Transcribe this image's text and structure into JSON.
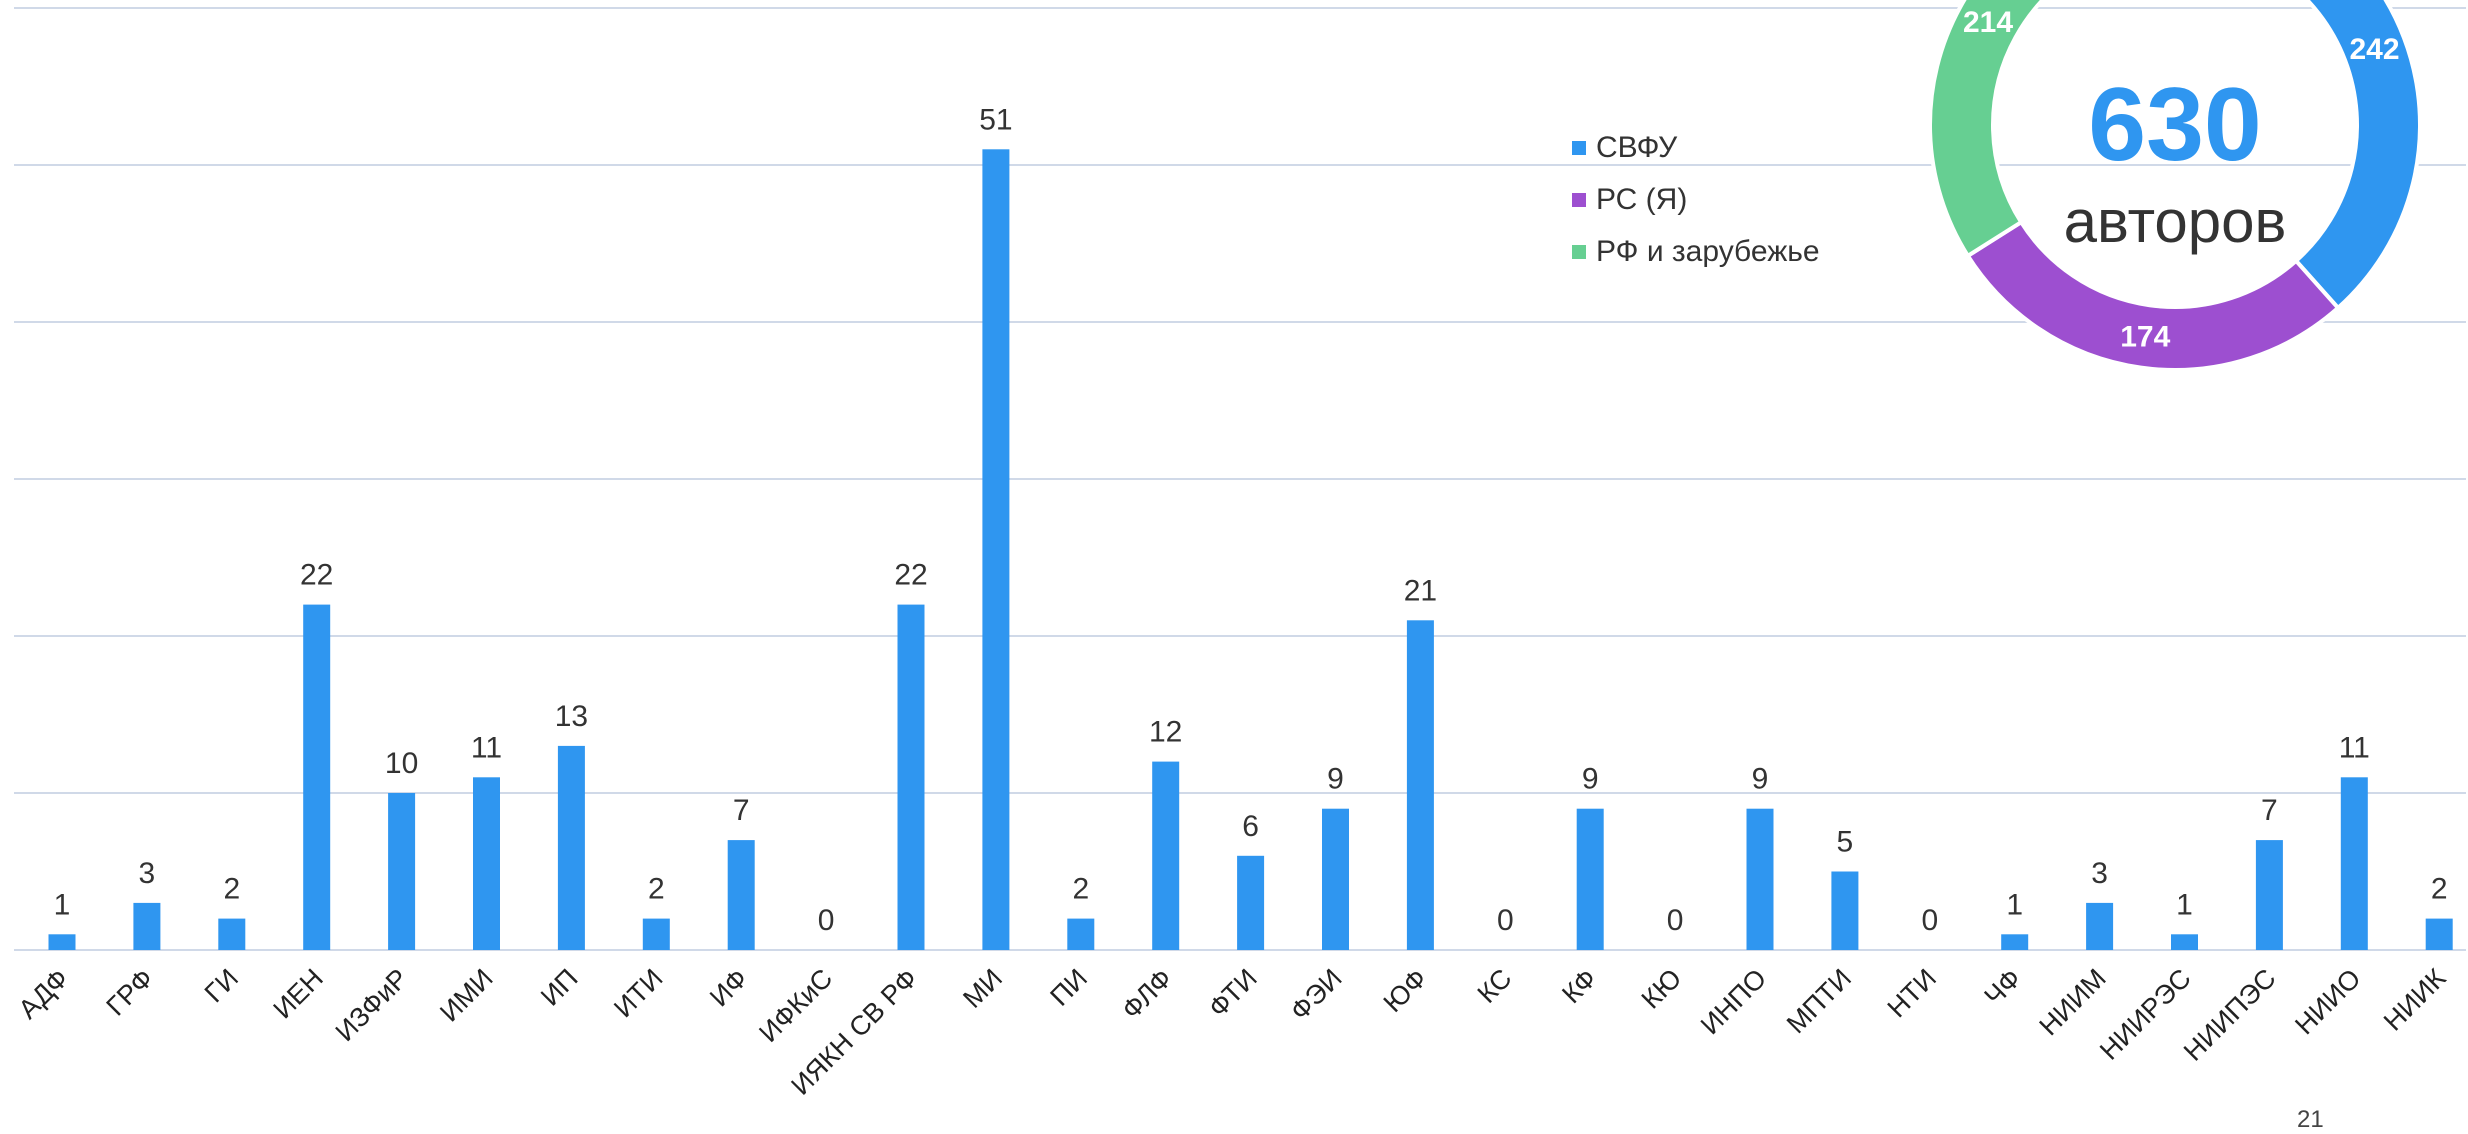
{
  "chart_data": [
    {
      "type": "bar",
      "categories": [
        "АДФ",
        "ГРФ",
        "ГИ",
        "ИЕН",
        "ИЗФиР",
        "ИМИ",
        "ИП",
        "ИТИ",
        "ИФ",
        "ИФКиС",
        "ИЯКН СВ РФ",
        "МИ",
        "ПИ",
        "ФЛФ",
        "ФТИ",
        "ФЭИ",
        "ЮФ",
        "КС",
        "КФ",
        "КЮ",
        "ИНПО",
        "МПТИ",
        "НТИ",
        "ЧФ",
        "НИИМ",
        "НИИРЭС",
        "НИИПЭС",
        "НИИО",
        "НИИК"
      ],
      "values": [
        1,
        3,
        2,
        22,
        10,
        11,
        13,
        2,
        7,
        0,
        22,
        51,
        2,
        12,
        6,
        9,
        21,
        0,
        9,
        0,
        9,
        5,
        0,
        1,
        3,
        1,
        7,
        11,
        2
      ],
      "ylim": [
        0,
        60
      ],
      "grid": true,
      "bar_color": "#2f96f0"
    },
    {
      "type": "pie",
      "variant": "donut",
      "total_value": "630",
      "total_caption": "авторов",
      "slices": [
        {
          "name": "СВФУ",
          "value": 242,
          "label": "242",
          "color": "#2f96f0"
        },
        {
          "name": "РС (Я)",
          "value": 174,
          "label": "174",
          "color": "#9d4fd0"
        },
        {
          "name": "РФ и зарубежье",
          "value": 214,
          "label": "214",
          "color": "#66cf92"
        }
      ],
      "legend_position": "left of donut"
    }
  ],
  "legend": {
    "items": [
      {
        "label": "СВФУ",
        "color": "#2f96f0"
      },
      {
        "label": "РС (Я)",
        "color": "#9d4fd0"
      },
      {
        "label": "РФ и зарубежье",
        "color": "#66cf92"
      }
    ]
  },
  "page_number": "21"
}
